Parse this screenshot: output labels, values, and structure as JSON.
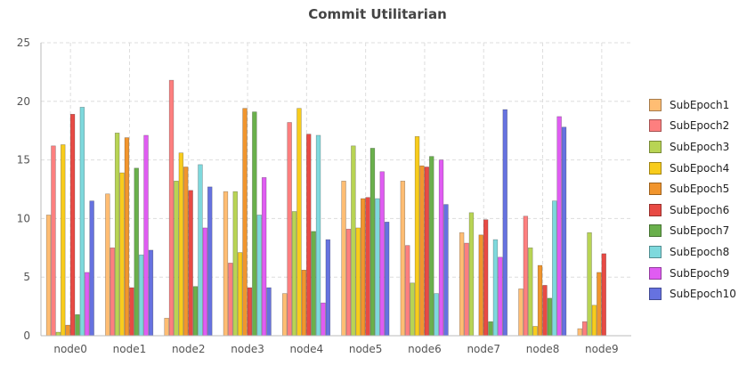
{
  "chart_data": {
    "type": "bar",
    "title": "Commit Utilitarian",
    "xlabel": "",
    "ylabel": "",
    "ylim": [
      0,
      25
    ],
    "yticks": [
      0,
      5,
      10,
      15,
      20,
      25
    ],
    "grid": true,
    "legend_position": "right",
    "categories": [
      "node0",
      "node1",
      "node2",
      "node3",
      "node4",
      "node5",
      "node6",
      "node7",
      "node8",
      "node9"
    ],
    "series": [
      {
        "name": "SubEpoch1",
        "color": "#ffbd73",
        "values": [
          10.3,
          12.1,
          1.5,
          12.3,
          3.6,
          13.2,
          13.2,
          8.8,
          4.0,
          0.6
        ]
      },
      {
        "name": "SubEpoch2",
        "color": "#fd7f7f",
        "values": [
          16.2,
          7.5,
          21.8,
          6.2,
          18.2,
          9.1,
          7.7,
          7.9,
          10.2,
          1.2
        ]
      },
      {
        "name": "SubEpoch3",
        "color": "#b8d454",
        "values": [
          0.3,
          17.3,
          13.2,
          12.3,
          10.6,
          16.2,
          4.5,
          10.5,
          7.5,
          8.8
        ]
      },
      {
        "name": "SubEpoch4",
        "color": "#f8cc1c",
        "values": [
          16.3,
          13.9,
          15.6,
          7.1,
          19.4,
          9.2,
          17.0,
          0.0,
          0.8,
          2.6
        ]
      },
      {
        "name": "SubEpoch5",
        "color": "#f1952d",
        "values": [
          0.9,
          16.9,
          14.4,
          19.4,
          5.6,
          11.7,
          14.5,
          8.6,
          6.0,
          5.4
        ]
      },
      {
        "name": "SubEpoch6",
        "color": "#e84a44",
        "values": [
          18.9,
          4.1,
          12.4,
          4.1,
          17.2,
          11.8,
          14.4,
          9.9,
          4.3,
          7.0
        ]
      },
      {
        "name": "SubEpoch7",
        "color": "#6ab04c",
        "values": [
          1.8,
          14.3,
          4.2,
          19.1,
          8.9,
          16.0,
          15.3,
          1.2,
          3.2,
          0.0
        ]
      },
      {
        "name": "SubEpoch8",
        "color": "#7ed9dd",
        "values": [
          19.5,
          6.9,
          14.6,
          10.3,
          17.1,
          11.7,
          3.6,
          8.2,
          11.5,
          0.0
        ]
      },
      {
        "name": "SubEpoch9",
        "color": "#e05cf2",
        "values": [
          5.4,
          17.1,
          9.2,
          13.5,
          2.8,
          14.0,
          15.0,
          6.7,
          18.7,
          0.0
        ]
      },
      {
        "name": "SubEpoch10",
        "color": "#6672e0",
        "values": [
          11.5,
          7.3,
          12.7,
          4.1,
          8.2,
          9.7,
          11.2,
          19.3,
          17.8,
          0.0
        ]
      }
    ]
  }
}
